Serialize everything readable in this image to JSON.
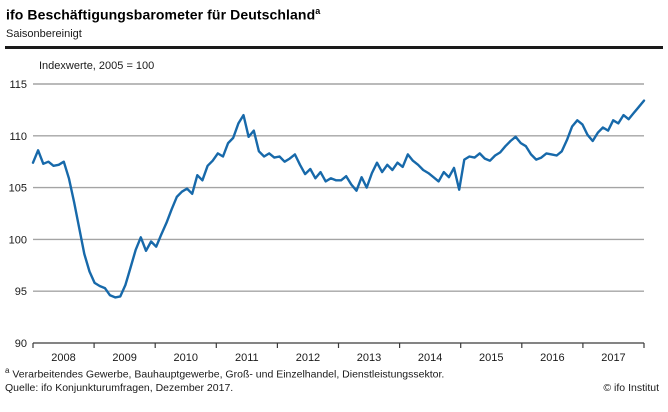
{
  "header": {
    "title": "ifo Beschäftigungsbarometer für Deutschland",
    "title_superscript": "a",
    "subtitle": "Saisonbereinigt"
  },
  "chart_data": {
    "type": "line",
    "title": "ifo Beschäftigungsbarometer für Deutschland (saisonbereinigt)",
    "unit_label": "Indexwerte, 2005 = 100",
    "frequency": "monthly",
    "x_range": "2008-01 to 2017-12",
    "x_tick_years": [
      "2008",
      "2009",
      "2010",
      "2011",
      "2012",
      "2013",
      "2014",
      "2015",
      "2016",
      "2017"
    ],
    "ylim": [
      90,
      115
    ],
    "yticks": [
      90,
      95,
      100,
      105,
      110,
      115
    ],
    "grid": "horizontal",
    "legend_position": "none",
    "line_color": "#1769aa",
    "gridline_color": "#a4a4a4",
    "axis_color": "#3a3a3a",
    "series": [
      {
        "name": "ifo Beschäftigungsbarometer",
        "values": [
          107.4,
          108.6,
          107.3,
          107.5,
          107.1,
          107.2,
          107.5,
          105.9,
          103.6,
          101.1,
          98.6,
          96.9,
          95.8,
          95.5,
          95.3,
          94.6,
          94.4,
          94.5,
          95.6,
          97.3,
          99.0,
          100.2,
          98.9,
          99.8,
          99.3,
          100.5,
          101.6,
          102.9,
          104.1,
          104.6,
          104.9,
          104.4,
          106.2,
          105.7,
          107.1,
          107.6,
          108.3,
          108.0,
          109.3,
          109.8,
          111.2,
          112.0,
          109.9,
          110.5,
          108.5,
          108.0,
          108.3,
          107.9,
          108.0,
          107.5,
          107.8,
          108.2,
          107.2,
          106.3,
          106.8,
          105.9,
          106.5,
          105.6,
          105.9,
          105.7,
          105.7,
          106.1,
          105.3,
          104.7,
          106.0,
          105.0,
          106.4,
          107.4,
          106.5,
          107.2,
          106.7,
          107.4,
          107.0,
          108.2,
          107.6,
          107.2,
          106.7,
          106.4,
          106.0,
          105.6,
          106.5,
          106.0,
          106.9,
          104.8,
          107.7,
          108.0,
          107.9,
          108.3,
          107.8,
          107.6,
          108.1,
          108.4,
          109.0,
          109.5,
          109.9,
          109.3,
          109.0,
          108.2,
          107.7,
          107.9,
          108.3,
          108.2,
          108.1,
          108.5,
          109.6,
          110.9,
          111.5,
          111.1,
          110.1,
          109.5,
          110.3,
          110.8,
          110.5,
          111.5,
          111.2,
          112.0,
          111.6,
          112.2,
          112.8,
          113.4
        ]
      }
    ]
  },
  "footer": {
    "footnote_marker": "a",
    "footnote_text": "Verarbeitendes Gewerbe, Bauhauptgewerbe, Groß- und Einzelhandel, Dienstleistungssektor.",
    "source": "Quelle: ifo Konjunkturumfragen, Dezember 2017.",
    "copyright": "© ifo Institut"
  }
}
